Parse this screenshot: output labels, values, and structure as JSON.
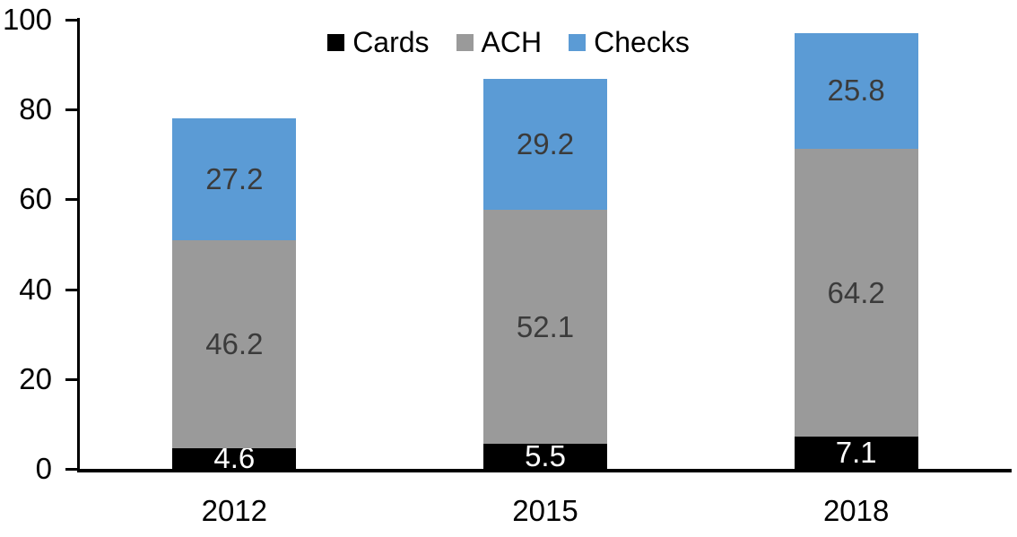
{
  "chart_data": {
    "type": "bar",
    "stacked": true,
    "title": "",
    "xlabel": "",
    "ylabel": "",
    "categories": [
      "2012",
      "2015",
      "2018"
    ],
    "series": [
      {
        "name": "Cards",
        "color": "#000000",
        "label_color": "#ffffff",
        "values": [
          4.6,
          5.5,
          7.1
        ]
      },
      {
        "name": "ACH",
        "color": "#9A9A9A",
        "label_color": "#3b3b3b",
        "values": [
          46.2,
          52.1,
          64.2
        ]
      },
      {
        "name": "Checks",
        "color": "#5B9BD5",
        "label_color": "#3b3b3b",
        "values": [
          27.2,
          29.2,
          25.8
        ]
      }
    ],
    "totals": [
      78.0,
      86.8,
      97.1
    ],
    "ylim": [
      0,
      100
    ],
    "yticks": [
      0,
      20,
      40,
      60,
      80,
      100
    ],
    "grid": false,
    "legend_position": "top-center",
    "data_labels": "center",
    "axis_color": "#000000",
    "background_color": "#ffffff"
  }
}
